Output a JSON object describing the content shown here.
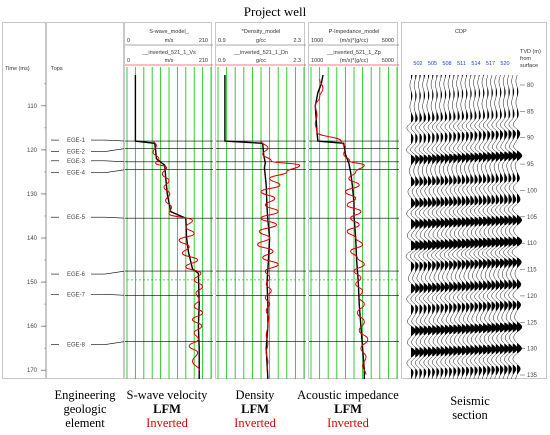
{
  "title": "Project well",
  "time_panel": {
    "label": "Time (ms)",
    "ticks": [
      "110",
      "120",
      "130",
      "140",
      "150",
      "160",
      "170"
    ]
  },
  "tops_panel": {
    "label": "Tops",
    "tops": [
      {
        "name": "EGE-1",
        "t": 118
      },
      {
        "name": "EGE-2",
        "t": 119.7
      },
      {
        "name": "EGE-3",
        "t": 122.7
      },
      {
        "name": "EGE-4",
        "t": 124.5
      },
      {
        "name": "EGE-5",
        "t": 135.5
      },
      {
        "name": "EGE-6",
        "t": 147.5
      },
      {
        "name": "EGE-7",
        "t": 153
      },
      {
        "name": "EGE-8",
        "t": 163.5
      }
    ]
  },
  "tracks": [
    {
      "key": "vs",
      "model_label": "S-wave_model_",
      "model_min": "0",
      "model_unit": "m/s",
      "model_max": "210",
      "inv_label": "__inverted_521_1_Vs",
      "inv_min": "0",
      "inv_unit": "m/s",
      "inv_max": "210",
      "lfm": [
        [
          103,
          0.1
        ],
        [
          118,
          0.1
        ],
        [
          118.5,
          0.33
        ],
        [
          120,
          0.34
        ],
        [
          122,
          0.35
        ],
        [
          123.5,
          0.45
        ],
        [
          126,
          0.46
        ],
        [
          130,
          0.48
        ],
        [
          134,
          0.52
        ],
        [
          135.5,
          0.7
        ],
        [
          140,
          0.71
        ],
        [
          143,
          0.73
        ],
        [
          147,
          0.78
        ],
        [
          148,
          0.85
        ],
        [
          155,
          0.86
        ],
        [
          160,
          0.85
        ],
        [
          165,
          0.86
        ],
        [
          172,
          0.86
        ]
      ],
      "inverted": [
        [
          118,
          0.32
        ],
        [
          119,
          0.35
        ],
        [
          120.5,
          0.31
        ],
        [
          122,
          0.38
        ],
        [
          123,
          0.34
        ],
        [
          124,
          0.47
        ],
        [
          125.5,
          0.42
        ],
        [
          127,
          0.5
        ],
        [
          128.5,
          0.44
        ],
        [
          130,
          0.51
        ],
        [
          131.5,
          0.46
        ],
        [
          133,
          0.53
        ],
        [
          134.5,
          0.5
        ],
        [
          136,
          0.78
        ],
        [
          137.5,
          0.7
        ],
        [
          139,
          0.8
        ],
        [
          140.5,
          0.62
        ],
        [
          142,
          0.74
        ],
        [
          143.5,
          0.66
        ],
        [
          145,
          0.84
        ],
        [
          146.5,
          0.7
        ],
        [
          148,
          0.88
        ],
        [
          149.5,
          0.8
        ],
        [
          151,
          0.9
        ],
        [
          152.5,
          0.82
        ],
        [
          154,
          0.86
        ],
        [
          155.5,
          0.8
        ],
        [
          157,
          0.9
        ],
        [
          158.5,
          0.78
        ],
        [
          160,
          0.89
        ],
        [
          161.5,
          0.8
        ],
        [
          163,
          0.85
        ],
        [
          164.5,
          0.74
        ],
        [
          166,
          0.84
        ],
        [
          168,
          0.78
        ],
        [
          170,
          0.86
        ]
      ]
    },
    {
      "key": "rho",
      "model_label": "*Density_model",
      "model_min": "0.9",
      "model_unit": "g/cc",
      "model_max": "2.3",
      "inv_label": "__inverted_521_1_Dn",
      "inv_min": "0.9",
      "inv_unit": "g/cc",
      "inv_max": "2.3",
      "lfm": [
        [
          103,
          0.08
        ],
        [
          118,
          0.08
        ],
        [
          118.5,
          0.52
        ],
        [
          121,
          0.53
        ],
        [
          123,
          0.55
        ],
        [
          124,
          0.54
        ],
        [
          128,
          0.56
        ],
        [
          133,
          0.57
        ],
        [
          136,
          0.58
        ],
        [
          140,
          0.6
        ],
        [
          147,
          0.58
        ],
        [
          150,
          0.57
        ],
        [
          155,
          0.58
        ],
        [
          160,
          0.58
        ],
        [
          165,
          0.56
        ],
        [
          172,
          0.58
        ]
      ],
      "inverted": [
        [
          118,
          0.5
        ],
        [
          119.5,
          0.58
        ],
        [
          121,
          0.52
        ],
        [
          122.5,
          0.62
        ],
        [
          123.5,
          0.95
        ],
        [
          125,
          0.8
        ],
        [
          126.5,
          0.6
        ],
        [
          128,
          0.72
        ],
        [
          129.5,
          0.5
        ],
        [
          131,
          0.66
        ],
        [
          132.5,
          0.55
        ],
        [
          134,
          0.7
        ],
        [
          135.5,
          0.5
        ],
        [
          137,
          0.68
        ],
        [
          138.5,
          0.48
        ],
        [
          140,
          0.6
        ],
        [
          141.5,
          0.46
        ],
        [
          143,
          0.64
        ],
        [
          144.5,
          0.52
        ],
        [
          146,
          0.7
        ],
        [
          147.5,
          0.55
        ],
        [
          149,
          0.6
        ],
        [
          150.5,
          0.56
        ],
        [
          152,
          0.62
        ],
        [
          153.5,
          0.55
        ],
        [
          155,
          0.6
        ],
        [
          156.5,
          0.56
        ],
        [
          158,
          0.59
        ],
        [
          160,
          0.58
        ],
        [
          162,
          0.56
        ],
        [
          164,
          0.58
        ],
        [
          166,
          0.56
        ],
        [
          168,
          0.58
        ],
        [
          170,
          0.57
        ]
      ]
    },
    {
      "key": "zp",
      "model_label": "P-Impedance_model",
      "model_min": "1000",
      "model_unit": "(m/s)*(g/cc)",
      "model_max": "5000",
      "inv_label": "__inverted_521_1_Zp",
      "inv_min": "1000",
      "inv_unit": "(m/s)*(g/cc)",
      "inv_max": "5000",
      "lfm": [
        [
          103,
          0.14
        ],
        [
          105,
          0.12
        ],
        [
          107,
          0.08
        ],
        [
          110,
          0.05
        ],
        [
          113,
          0.06
        ],
        [
          116,
          0.07
        ],
        [
          118,
          0.08
        ],
        [
          118.5,
          0.38
        ],
        [
          121,
          0.4
        ],
        [
          123,
          0.44
        ],
        [
          125,
          0.46
        ],
        [
          128,
          0.48
        ],
        [
          132,
          0.5
        ],
        [
          135,
          0.5
        ],
        [
          140,
          0.52
        ],
        [
          145,
          0.53
        ],
        [
          150,
          0.55
        ],
        [
          155,
          0.56
        ],
        [
          160,
          0.58
        ],
        [
          165,
          0.6
        ],
        [
          170,
          0.62
        ],
        [
          172,
          0.62
        ]
      ],
      "inverted": [
        [
          104,
          0.1
        ],
        [
          106,
          0.14
        ],
        [
          108,
          0.1
        ],
        [
          110,
          0.05
        ],
        [
          112,
          0.07
        ],
        [
          114,
          0.05
        ],
        [
          116,
          0.07
        ],
        [
          118,
          0.35
        ],
        [
          119.5,
          0.4
        ],
        [
          121,
          0.38
        ],
        [
          122.5,
          0.45
        ],
        [
          123.5,
          0.62
        ],
        [
          125,
          0.52
        ],
        [
          126.5,
          0.44
        ],
        [
          128,
          0.56
        ],
        [
          129.5,
          0.4
        ],
        [
          131,
          0.52
        ],
        [
          132.5,
          0.42
        ],
        [
          134,
          0.58
        ],
        [
          135.5,
          0.46
        ],
        [
          137,
          0.56
        ],
        [
          138.5,
          0.42
        ],
        [
          140,
          0.52
        ],
        [
          141.5,
          0.6
        ],
        [
          143,
          0.46
        ],
        [
          144.5,
          0.54
        ],
        [
          146,
          0.62
        ],
        [
          147.5,
          0.5
        ],
        [
          149,
          0.58
        ],
        [
          150.5,
          0.52
        ],
        [
          152,
          0.6
        ],
        [
          153.5,
          0.56
        ],
        [
          155,
          0.62
        ],
        [
          157,
          0.54
        ],
        [
          159,
          0.62
        ],
        [
          161,
          0.56
        ],
        [
          163,
          0.66
        ],
        [
          165,
          0.58
        ],
        [
          167,
          0.64
        ],
        [
          169,
          0.6
        ],
        [
          171,
          0.64
        ]
      ]
    }
  ],
  "seismic": {
    "header": "CDP",
    "cdps": [
      "502",
      "505",
      "508",
      "511",
      "514",
      "517",
      "520"
    ],
    "tvd_label": "TVD (m)\nfrom\nsurface",
    "tvd_ticks": [
      "80",
      "85",
      "90",
      "95",
      "100",
      "105",
      "110",
      "115",
      "120",
      "125",
      "130",
      "135"
    ]
  },
  "captions": {
    "tops": "Engineering\ngeologic\nelement",
    "vs": "S-wave velocity",
    "rho": "Density",
    "zp": "Acoustic impedance",
    "lfm": "LFM",
    "inverted": "Inverted",
    "seismic": "Seismic\nsection"
  },
  "colors": {
    "lfm": "#000000",
    "inverted": "#e00000",
    "grid": "#1ec81e",
    "tops": "#000000",
    "accent_blue": "#1f3fd6"
  }
}
